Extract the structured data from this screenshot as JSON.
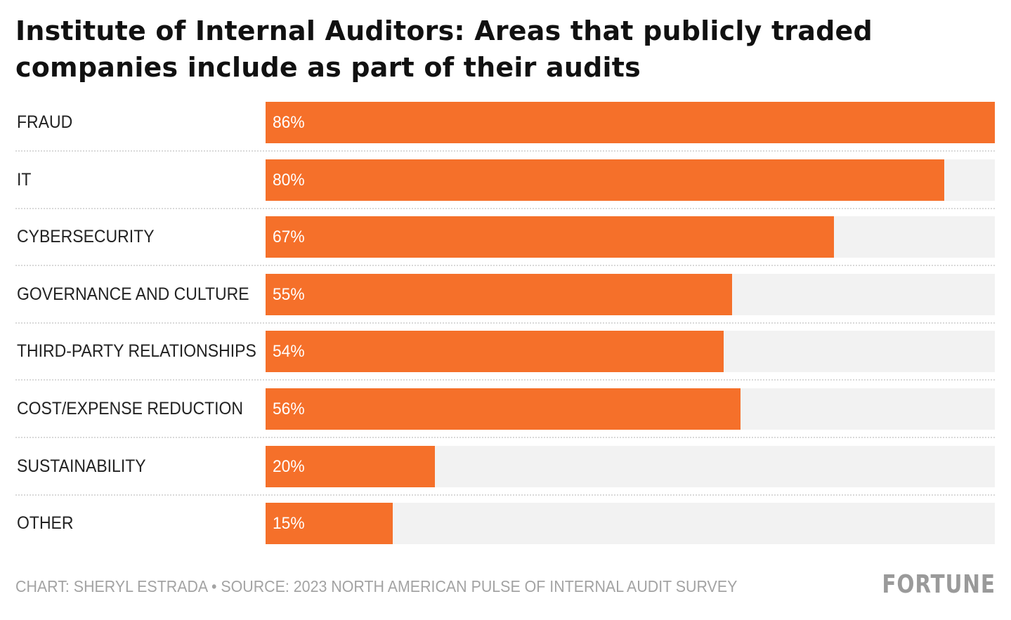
{
  "title": "Institute of Internal Auditors: Areas that publicly traded companies include as part of their audits",
  "footer": "CHART: SHERYL ESTRADA • SOURCE: 2023 NORTH AMERICAN PULSE OF INTERNAL AUDIT SURVEY",
  "logo": "FORTUNE",
  "colors": {
    "bar": "#f5702a",
    "track": "#f2f2f2",
    "title": "#111111",
    "footer": "#a3a3a3"
  },
  "chart_data": {
    "type": "bar",
    "orientation": "horizontal",
    "title": "Institute of Internal Auditors: Areas that publicly traded companies include as part of their audits",
    "categories": [
      "FRAUD",
      "IT",
      "CYBERSECURITY",
      "GOVERNANCE AND CULTURE",
      "THIRD-PARTY RELATIONSHIPS",
      "COST/EXPENSE REDUCTION",
      "SUSTAINABILITY",
      "OTHER"
    ],
    "values": [
      86,
      80,
      67,
      55,
      54,
      56,
      20,
      15
    ],
    "value_labels": [
      "86%",
      "80%",
      "67%",
      "55%",
      "54%",
      "56%",
      "20%",
      "15%"
    ],
    "xlim": [
      0,
      86
    ],
    "grid": false,
    "legend": "none"
  }
}
